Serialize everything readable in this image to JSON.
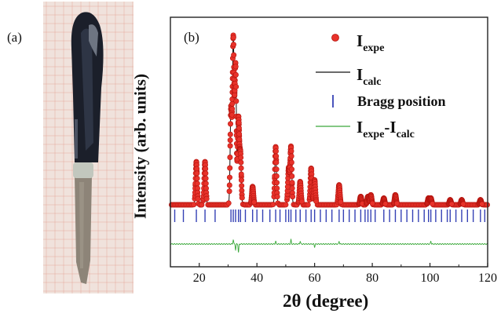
{
  "panels": {
    "a": "(a)",
    "b": "(b)"
  },
  "photo": {
    "colors": {
      "paper": "#f0e2dc",
      "grid": "#e5a89b",
      "handle": "#1b1f2a",
      "blade": "#8d8478",
      "ring": "#c2c7be"
    }
  },
  "chart_data": {
    "type": "line",
    "title": "",
    "xlabel_prefix": "2θ",
    "xlabel_unit": "(degree)",
    "ylabel": "Intensity (arb. units)",
    "xlim": [
      10,
      120
    ],
    "x_ticks": [
      20,
      40,
      60,
      80,
      100,
      120
    ],
    "y_ticks_shown": false,
    "y_scale": "arbitrary (0 = background baseline, 100 = strongest peak)",
    "legend": {
      "placement": "top-right",
      "entries": [
        {
          "main": "I",
          "sub": "expe",
          "marker": "red-circle"
        },
        {
          "main": "I",
          "sub": "calc",
          "marker": "black-line"
        },
        {
          "main": "Bragg position",
          "marker": "blue-tick"
        },
        {
          "main": "I",
          "sub": "expe",
          "main2": "-I",
          "sub2": "calc",
          "marker": "green-line"
        }
      ]
    },
    "series": [
      {
        "name": "Iexpe",
        "style": "red-circles",
        "peaks": [
          {
            "x": 19.0,
            "y": 26
          },
          {
            "x": 22.0,
            "y": 26
          },
          {
            "x": 31.0,
            "y": 58
          },
          {
            "x": 31.8,
            "y": 100
          },
          {
            "x": 32.6,
            "y": 84
          },
          {
            "x": 33.6,
            "y": 52
          },
          {
            "x": 34.3,
            "y": 30
          },
          {
            "x": 38.5,
            "y": 11
          },
          {
            "x": 46.5,
            "y": 35
          },
          {
            "x": 51.0,
            "y": 22
          },
          {
            "x": 51.8,
            "y": 35
          },
          {
            "x": 55.0,
            "y": 14
          },
          {
            "x": 58.8,
            "y": 22
          },
          {
            "x": 60.0,
            "y": 15
          },
          {
            "x": 68.5,
            "y": 12
          },
          {
            "x": 76.0,
            "y": 5
          },
          {
            "x": 78.5,
            "y": 5
          },
          {
            "x": 79.5,
            "y": 6
          },
          {
            "x": 84.0,
            "y": 4
          },
          {
            "x": 88.0,
            "y": 6
          },
          {
            "x": 99.5,
            "y": 4
          },
          {
            "x": 100.3,
            "y": 4
          },
          {
            "x": 107.0,
            "y": 3
          },
          {
            "x": 111.0,
            "y": 3
          },
          {
            "x": 117.5,
            "y": 3
          }
        ]
      },
      {
        "name": "Icalc",
        "style": "black-line",
        "same_as": "Iexpe"
      },
      {
        "name": "Bragg position",
        "style": "blue-ticks",
        "positions": [
          11.5,
          14.5,
          19,
          22,
          25.5,
          31,
          31.8,
          32.6,
          33.6,
          34.3,
          36,
          38.5,
          40,
          42,
          44.5,
          46.5,
          48,
          50,
          51,
          51.8,
          53.5,
          55,
          57,
          58.8,
          60,
          62,
          64,
          66,
          68.5,
          70,
          72,
          74,
          76,
          77.5,
          78.5,
          79.5,
          81,
          84,
          86,
          88,
          90,
          92,
          94,
          96,
          98,
          99.5,
          100.3,
          102,
          104,
          106,
          107,
          109,
          111,
          113,
          115,
          117.5,
          119
        ]
      },
      {
        "name": "Iexpe-Icalc",
        "style": "green-line",
        "spikes": [
          {
            "x": 31.8,
            "y": 3
          },
          {
            "x": 32.6,
            "y": -4
          },
          {
            "x": 33.6,
            "y": -6
          },
          {
            "x": 46.5,
            "y": 2
          },
          {
            "x": 51.8,
            "y": 3
          },
          {
            "x": 55.0,
            "y": 2
          },
          {
            "x": 60.0,
            "y": -2
          },
          {
            "x": 68.5,
            "y": 2
          },
          {
            "x": 100.3,
            "y": 2
          }
        ]
      }
    ]
  }
}
